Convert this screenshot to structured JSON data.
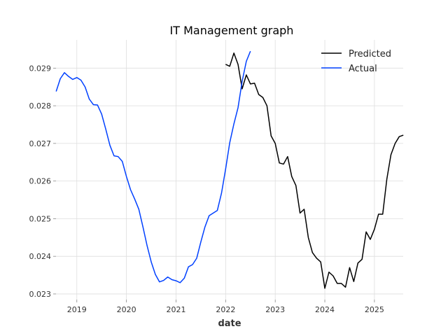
{
  "chart_data": {
    "type": "line",
    "title": "IT Management graph",
    "xlabel": "date",
    "ylabel": "",
    "xlim": [
      2018.58,
      2025.58
    ],
    "ylim": [
      0.02285,
      0.02975
    ],
    "grid": true,
    "legend_position": "top-right",
    "x_ticks": [
      2019,
      2020,
      2021,
      2022,
      2023,
      2024,
      2025
    ],
    "x_tick_labels": [
      "2019",
      "2020",
      "2021",
      "2022",
      "2023",
      "2024",
      "2025"
    ],
    "y_ticks": [
      0.023,
      0.024,
      0.025,
      0.026,
      0.027,
      0.028,
      0.029
    ],
    "y_tick_labels": [
      "0.023",
      "0.024",
      "0.025",
      "0.026",
      "0.027",
      "0.028",
      "0.029"
    ],
    "series": [
      {
        "name": "Predicted",
        "color": "#000000",
        "x": [
          2022.0,
          2022.083,
          2022.167,
          2022.25,
          2022.333,
          2022.417,
          2022.5,
          2022.583,
          2022.667,
          2022.75,
          2022.833,
          2022.917,
          2023.0,
          2023.083,
          2023.167,
          2023.25,
          2023.333,
          2023.417,
          2023.5,
          2023.583,
          2023.667,
          2023.75,
          2023.833,
          2023.917,
          2024.0,
          2024.083,
          2024.167,
          2024.25,
          2024.333,
          2024.417,
          2024.5,
          2024.583,
          2024.667,
          2024.75,
          2024.833,
          2024.917,
          2025.0,
          2025.083,
          2025.167,
          2025.25,
          2025.333,
          2025.417,
          2025.5,
          2025.583
        ],
        "y": [
          0.0291,
          0.02905,
          0.0294,
          0.0291,
          0.02845,
          0.02882,
          0.02858,
          0.0286,
          0.0283,
          0.02822,
          0.028,
          0.0272,
          0.027,
          0.02648,
          0.02645,
          0.02665,
          0.02612,
          0.02588,
          0.02515,
          0.02525,
          0.0245,
          0.0241,
          0.02395,
          0.02385,
          0.02315,
          0.02358,
          0.02348,
          0.02328,
          0.02328,
          0.02318,
          0.0237,
          0.02333,
          0.02382,
          0.02392,
          0.02465,
          0.02445,
          0.02472,
          0.02512,
          0.02512,
          0.02605,
          0.0267,
          0.027,
          0.02718,
          0.02722
        ]
      },
      {
        "name": "Actual",
        "color": "#0040ff",
        "x": [
          2018.583,
          2018.667,
          2018.75,
          2018.833,
          2018.917,
          2019.0,
          2019.083,
          2019.167,
          2019.25,
          2019.333,
          2019.417,
          2019.5,
          2019.583,
          2019.667,
          2019.75,
          2019.833,
          2019.917,
          2020.0,
          2020.083,
          2020.167,
          2020.25,
          2020.333,
          2020.417,
          2020.5,
          2020.583,
          2020.667,
          2020.75,
          2020.833,
          2020.917,
          2021.0,
          2021.083,
          2021.167,
          2021.25,
          2021.333,
          2021.417,
          2021.5,
          2021.583,
          2021.667,
          2021.75,
          2021.833,
          2021.917,
          2022.0,
          2022.083,
          2022.167,
          2022.25,
          2022.333,
          2022.417,
          2022.5
        ],
        "y": [
          0.02838,
          0.02872,
          0.02888,
          0.02878,
          0.0287,
          0.02875,
          0.02868,
          0.0285,
          0.02818,
          0.02803,
          0.02802,
          0.02778,
          0.02738,
          0.02695,
          0.02667,
          0.02665,
          0.02652,
          0.02612,
          0.02577,
          0.02552,
          0.02525,
          0.02478,
          0.02428,
          0.02385,
          0.02352,
          0.02332,
          0.02336,
          0.02345,
          0.02338,
          0.02335,
          0.0233,
          0.02342,
          0.02372,
          0.02378,
          0.02395,
          0.02438,
          0.02478,
          0.02508,
          0.02515,
          0.02522,
          0.02568,
          0.02632,
          0.02702,
          0.02752,
          0.02795,
          0.02865,
          0.02918,
          0.02945
        ]
      }
    ]
  }
}
